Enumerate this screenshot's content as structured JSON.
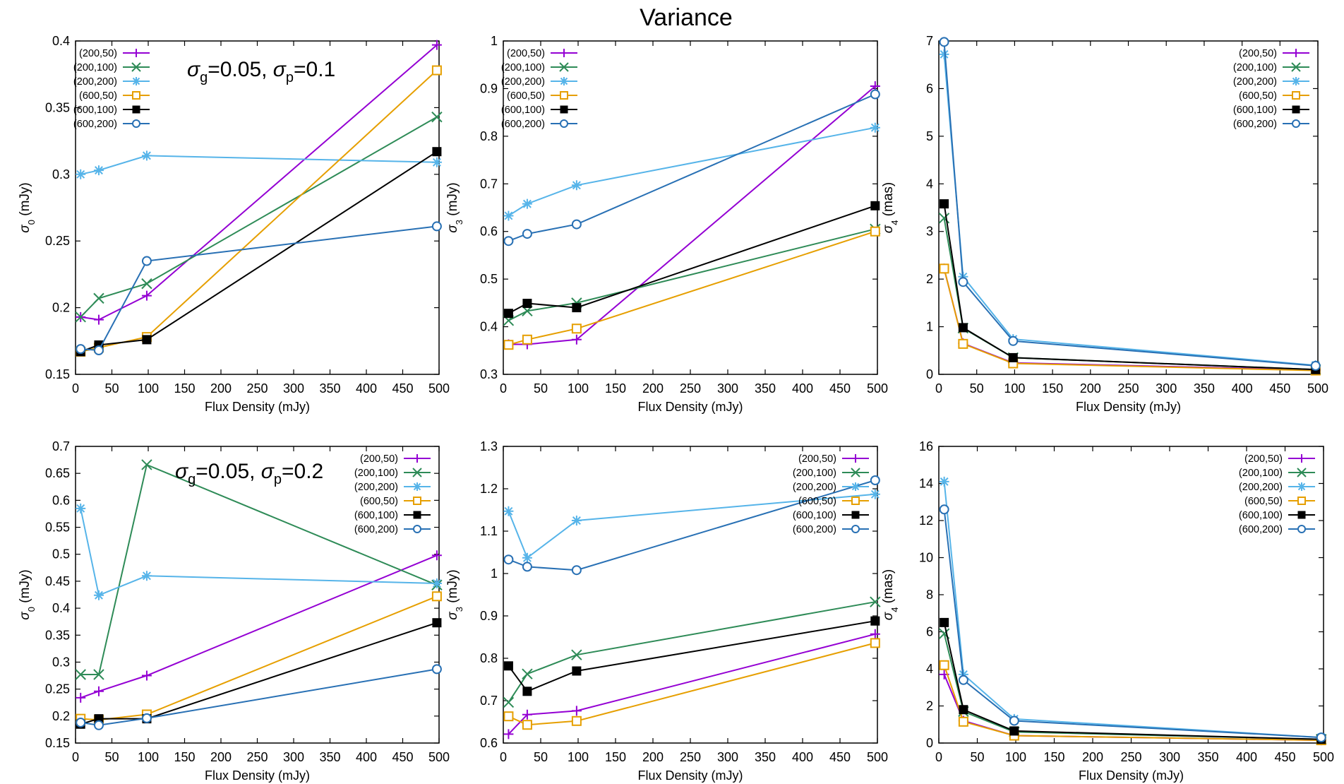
{
  "figure_title": "Variance",
  "colors": {
    "(200,50)": "#9400d3",
    "(200,100)": "#2e8b57",
    "(200,200)": "#56b4e9",
    "(600,50)": "#e69f00",
    "(600,100)": "#000000",
    "(600,200)": "#2870b4"
  },
  "chart_data": [
    {
      "type": "line",
      "panel": "top-left",
      "xlabel": "Flux Density (mJy)",
      "ylabel": "σ_0 (mJy)",
      "annotation": "σ_g=0.05, σ_p=0.1",
      "xlim": [
        0,
        500
      ],
      "ylim": [
        0.15,
        0.4
      ],
      "xticks": [
        0,
        50,
        100,
        150,
        200,
        250,
        300,
        350,
        400,
        450,
        500
      ],
      "yticks": [
        0.15,
        0.2,
        0.25,
        0.3,
        0.35,
        0.4
      ],
      "ytick_labels": [
        "0.15",
        "0.2",
        "0.25",
        "0.3",
        "0.35",
        "0.4"
      ],
      "legend_position": "top-left",
      "x": [
        7,
        32,
        98,
        497
      ],
      "series": [
        {
          "name": "(200,50)",
          "marker": "plus",
          "values": [
            0.193,
            0.191,
            0.209,
            0.397
          ]
        },
        {
          "name": "(200,100)",
          "marker": "cross",
          "values": [
            0.193,
            0.207,
            0.218,
            0.343
          ]
        },
        {
          "name": "(200,200)",
          "marker": "star",
          "values": [
            0.3,
            0.303,
            0.314,
            0.309
          ]
        },
        {
          "name": "(600,50)",
          "marker": "open-square",
          "values": [
            0.167,
            0.17,
            0.178,
            0.378
          ]
        },
        {
          "name": "(600,100)",
          "marker": "filled-square",
          "values": [
            0.167,
            0.172,
            0.176,
            0.317
          ]
        },
        {
          "name": "(600,200)",
          "marker": "open-circle",
          "values": [
            0.169,
            0.168,
            0.235,
            0.261
          ]
        }
      ]
    },
    {
      "type": "line",
      "panel": "top-middle",
      "xlabel": "Flux Density (mJy)",
      "ylabel": "σ_3 (mJy)",
      "xlim": [
        0,
        500
      ],
      "ylim": [
        0.3,
        1
      ],
      "xticks": [
        0,
        50,
        100,
        150,
        200,
        250,
        300,
        350,
        400,
        450,
        500
      ],
      "yticks": [
        0.3,
        0.4,
        0.5,
        0.6,
        0.7,
        0.8,
        0.9,
        1
      ],
      "ytick_labels": [
        "0.3",
        "0.4",
        "0.5",
        "0.6",
        "0.7",
        "0.8",
        "0.9",
        "1"
      ],
      "legend_position": "top-left",
      "x": [
        7,
        32,
        98,
        497
      ],
      "series": [
        {
          "name": "(200,50)",
          "marker": "plus",
          "values": [
            0.363,
            0.363,
            0.373,
            0.905
          ]
        },
        {
          "name": "(200,100)",
          "marker": "cross",
          "values": [
            0.413,
            0.433,
            0.45,
            0.605
          ]
        },
        {
          "name": "(200,200)",
          "marker": "star",
          "values": [
            0.633,
            0.658,
            0.697,
            0.818
          ]
        },
        {
          "name": "(600,50)",
          "marker": "open-square",
          "values": [
            0.362,
            0.373,
            0.396,
            0.6
          ]
        },
        {
          "name": "(600,100)",
          "marker": "filled-square",
          "values": [
            0.428,
            0.449,
            0.44,
            0.654
          ]
        },
        {
          "name": "(600,200)",
          "marker": "open-circle",
          "values": [
            0.58,
            0.595,
            0.615,
            0.888
          ]
        }
      ]
    },
    {
      "type": "line",
      "panel": "top-right",
      "xlabel": "Flux Density (mJy)",
      "ylabel": "σ_4 (mas)",
      "xlim": [
        0,
        500
      ],
      "ylim": [
        0,
        7
      ],
      "xticks": [
        0,
        50,
        100,
        150,
        200,
        250,
        300,
        350,
        400,
        450,
        500
      ],
      "yticks": [
        0,
        1,
        2,
        3,
        4,
        5,
        6,
        7
      ],
      "ytick_labels": [
        "0",
        "1",
        "2",
        "3",
        "4",
        "5",
        "6",
        "7"
      ],
      "legend_position": "top-right",
      "x": [
        7,
        32,
        98,
        497
      ],
      "series": [
        {
          "name": "(200,50)",
          "marker": "plus",
          "values": [
            2.22,
            0.65,
            0.24,
            0.09
          ]
        },
        {
          "name": "(200,100)",
          "marker": "cross",
          "values": [
            3.28,
            0.97,
            0.35,
            0.1
          ]
        },
        {
          "name": "(200,200)",
          "marker": "star",
          "values": [
            6.72,
            2.05,
            0.74,
            0.19
          ]
        },
        {
          "name": "(600,50)",
          "marker": "open-square",
          "values": [
            2.22,
            0.64,
            0.23,
            0.08
          ]
        },
        {
          "name": "(600,100)",
          "marker": "filled-square",
          "values": [
            3.58,
            0.98,
            0.35,
            0.1
          ]
        },
        {
          "name": "(600,200)",
          "marker": "open-circle",
          "values": [
            6.98,
            1.94,
            0.7,
            0.18
          ]
        }
      ]
    },
    {
      "type": "line",
      "panel": "bottom-left",
      "xlabel": "Flux Density (mJy)",
      "ylabel": "σ_0 (mJy)",
      "annotation": "σ_g=0.05, σ_p=0.2",
      "xlim": [
        0,
        500
      ],
      "ylim": [
        0.15,
        0.7
      ],
      "xticks": [
        0,
        50,
        100,
        150,
        200,
        250,
        300,
        350,
        400,
        450,
        500
      ],
      "yticks": [
        0.15,
        0.2,
        0.25,
        0.3,
        0.35,
        0.4,
        0.45,
        0.5,
        0.55,
        0.6,
        0.65,
        0.7
      ],
      "ytick_labels": [
        "0.15",
        "0.2",
        "0.25",
        "0.3",
        "0.35",
        "0.4",
        "0.45",
        "0.5",
        "0.55",
        "0.6",
        "0.65",
        "0.7"
      ],
      "legend_position": "top-right",
      "x": [
        7,
        32,
        98,
        497
      ],
      "series": [
        {
          "name": "(200,50)",
          "marker": "plus",
          "values": [
            0.234,
            0.246,
            0.275,
            0.498
          ]
        },
        {
          "name": "(200,100)",
          "marker": "cross",
          "values": [
            0.277,
            0.277,
            0.666,
            0.443
          ]
        },
        {
          "name": "(200,200)",
          "marker": "star",
          "values": [
            0.585,
            0.424,
            0.46,
            0.446
          ]
        },
        {
          "name": "(600,50)",
          "marker": "open-square",
          "values": [
            0.195,
            0.193,
            0.203,
            0.422
          ]
        },
        {
          "name": "(600,100)",
          "marker": "filled-square",
          "values": [
            0.185,
            0.195,
            0.195,
            0.373
          ]
        },
        {
          "name": "(600,200)",
          "marker": "open-circle",
          "values": [
            0.188,
            0.183,
            0.196,
            0.287
          ]
        }
      ]
    },
    {
      "type": "line",
      "panel": "bottom-middle",
      "xlabel": "Flux Density (mJy)",
      "ylabel": "σ_3 (mJy)",
      "xlim": [
        0,
        500
      ],
      "ylim": [
        0.6,
        1.3
      ],
      "xticks": [
        0,
        50,
        100,
        150,
        200,
        250,
        300,
        350,
        400,
        450,
        500
      ],
      "yticks": [
        0.6,
        0.7,
        0.8,
        0.9,
        1.0,
        1.1,
        1.2,
        1.3
      ],
      "ytick_labels": [
        "0.6",
        "0.7",
        "0.8",
        "0.9",
        "1",
        "1.1",
        "1.2",
        "1.3"
      ],
      "legend_position": "top-right",
      "x": [
        7,
        32,
        98,
        497
      ],
      "series": [
        {
          "name": "(200,50)",
          "marker": "plus",
          "values": [
            0.621,
            0.667,
            0.676,
            0.857
          ]
        },
        {
          "name": "(200,100)",
          "marker": "cross",
          "values": [
            0.696,
            0.763,
            0.808,
            0.933
          ]
        },
        {
          "name": "(200,200)",
          "marker": "star",
          "values": [
            1.147,
            1.037,
            1.125,
            1.187
          ]
        },
        {
          "name": "(600,50)",
          "marker": "open-square",
          "values": [
            0.663,
            0.643,
            0.652,
            0.836
          ]
        },
        {
          "name": "(600,100)",
          "marker": "filled-square",
          "values": [
            0.782,
            0.722,
            0.77,
            0.888
          ]
        },
        {
          "name": "(600,200)",
          "marker": "open-circle",
          "values": [
            1.033,
            1.016,
            1.008,
            1.22
          ]
        }
      ]
    },
    {
      "type": "line",
      "panel": "bottom-right",
      "xlabel": "Flux Density (mJy)",
      "ylabel": "σ_4 (mas)",
      "xlim": [
        0,
        500
      ],
      "ylim": [
        0,
        16
      ],
      "xticks": [
        0,
        50,
        100,
        150,
        200,
        250,
        300,
        350,
        400,
        450,
        500
      ],
      "yticks": [
        0,
        2,
        4,
        6,
        8,
        10,
        12,
        14,
        16
      ],
      "ytick_labels": [
        "0",
        "2",
        "4",
        "6",
        "8",
        "10",
        "12",
        "14",
        "16"
      ],
      "legend_position": "top-right",
      "x": [
        7,
        32,
        98,
        497
      ],
      "series": [
        {
          "name": "(200,50)",
          "marker": "plus",
          "values": [
            3.7,
            1.2,
            0.4,
            0.15
          ]
        },
        {
          "name": "(200,100)",
          "marker": "cross",
          "values": [
            5.9,
            1.7,
            0.6,
            0.2
          ]
        },
        {
          "name": "(200,200)",
          "marker": "star",
          "values": [
            14.1,
            3.7,
            1.3,
            0.3
          ]
        },
        {
          "name": "(600,50)",
          "marker": "open-square",
          "values": [
            4.2,
            1.15,
            0.4,
            0.15
          ]
        },
        {
          "name": "(600,100)",
          "marker": "filled-square",
          "values": [
            6.5,
            1.8,
            0.65,
            0.2
          ]
        },
        {
          "name": "(600,200)",
          "marker": "open-circle",
          "values": [
            12.6,
            3.4,
            1.2,
            0.3
          ]
        }
      ]
    }
  ]
}
